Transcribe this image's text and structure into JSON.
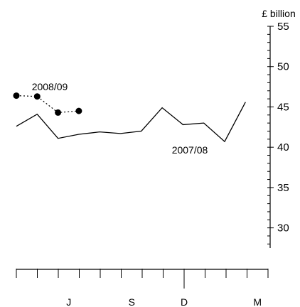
{
  "chart_data": {
    "type": "line",
    "title": "",
    "xlabel": "",
    "ylabel": "£ billion",
    "ylim": [
      27.5,
      55
    ],
    "y_ticks": [
      30,
      35,
      40,
      45,
      50,
      55
    ],
    "x_ticks": [
      "J",
      "S",
      "D",
      "M"
    ],
    "x_categories": 12,
    "series": [
      {
        "name": "2007/08",
        "style": "solid",
        "values": [
          42.6,
          44.1,
          41.1,
          41.6,
          41.9,
          41.7,
          42.0,
          44.9,
          42.8,
          43.0,
          40.7,
          45.6
        ]
      },
      {
        "name": "2008/09",
        "style": "dotted-markers",
        "values": [
          46.4,
          46.3,
          44.3,
          44.5
        ]
      }
    ],
    "grid": false,
    "colors": {
      "line": "#000000"
    }
  }
}
